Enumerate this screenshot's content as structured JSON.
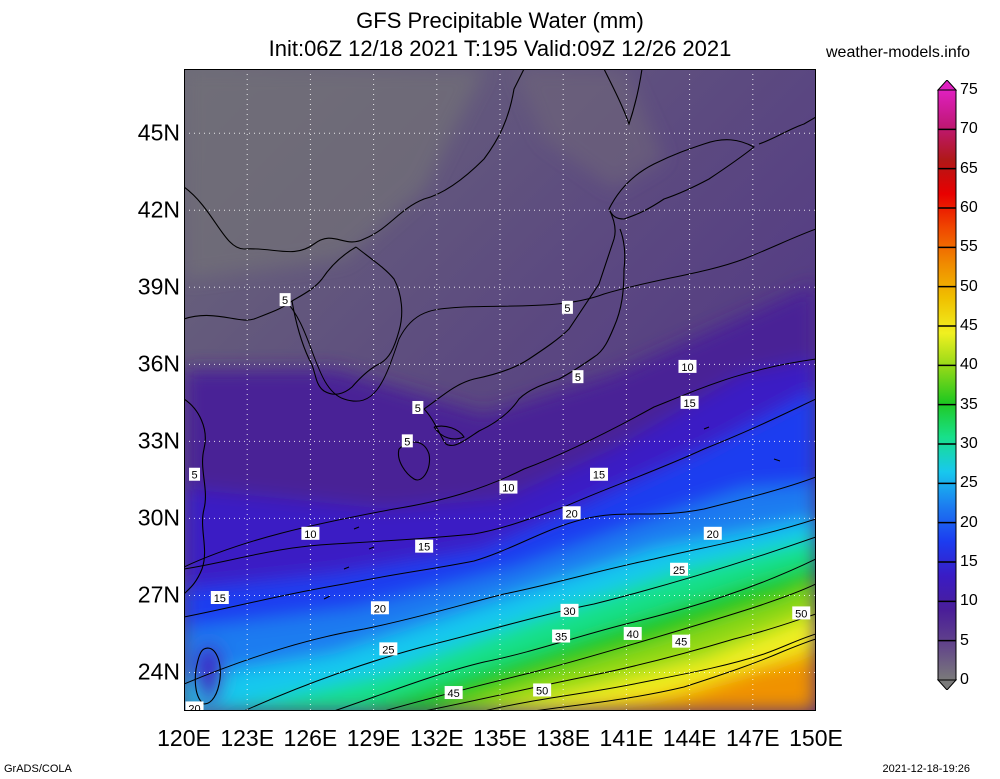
{
  "header": {
    "title": "GFS Precipitable Water (mm)",
    "subtitle": "Init:06Z 12/18 2021 T:195 Valid:09Z 12/26 2021",
    "site": "weather-models.info"
  },
  "footer": {
    "left": "GrADS/COLA",
    "right": "2021-12-18-19:26"
  },
  "map": {
    "lat_range": [
      22.5,
      47.5
    ],
    "lon_range": [
      120,
      150
    ],
    "lat_ticks": [
      "24N",
      "27N",
      "30N",
      "33N",
      "36N",
      "39N",
      "42N",
      "45N"
    ],
    "lat_values": [
      24,
      27,
      30,
      33,
      36,
      39,
      42,
      45
    ],
    "lon_ticks": [
      "120E",
      "123E",
      "126E",
      "129E",
      "132E",
      "135E",
      "138E",
      "141E",
      "144E",
      "147E",
      "150E"
    ],
    "lon_values": [
      120,
      123,
      126,
      129,
      132,
      135,
      138,
      141,
      144,
      147,
      150
    ],
    "contour_labels": [
      {
        "text": "5",
        "lon": 124.8,
        "lat": 38.5
      },
      {
        "text": "5",
        "lon": 138.2,
        "lat": 38.2
      },
      {
        "text": "5",
        "lon": 138.7,
        "lat": 35.5
      },
      {
        "text": "5",
        "lon": 131.1,
        "lat": 34.3
      },
      {
        "text": "5",
        "lon": 130.6,
        "lat": 33.0
      },
      {
        "text": "5",
        "lon": 120.5,
        "lat": 31.7
      },
      {
        "text": "10",
        "lon": 143.9,
        "lat": 35.9
      },
      {
        "text": "15",
        "lon": 144.0,
        "lat": 34.5
      },
      {
        "text": "15",
        "lon": 139.7,
        "lat": 31.7
      },
      {
        "text": "10",
        "lon": 135.4,
        "lat": 31.2
      },
      {
        "text": "20",
        "lon": 138.4,
        "lat": 30.2
      },
      {
        "text": "10",
        "lon": 126.0,
        "lat": 29.4
      },
      {
        "text": "15",
        "lon": 131.4,
        "lat": 28.9
      },
      {
        "text": "20",
        "lon": 145.1,
        "lat": 29.4
      },
      {
        "text": "25",
        "lon": 143.5,
        "lat": 28.0
      },
      {
        "text": "15",
        "lon": 121.7,
        "lat": 26.9
      },
      {
        "text": "20",
        "lon": 129.3,
        "lat": 26.5
      },
      {
        "text": "30",
        "lon": 138.3,
        "lat": 26.4
      },
      {
        "text": "35",
        "lon": 137.9,
        "lat": 25.4
      },
      {
        "text": "40",
        "lon": 141.3,
        "lat": 25.5
      },
      {
        "text": "45",
        "lon": 143.6,
        "lat": 25.2
      },
      {
        "text": "50",
        "lon": 149.3,
        "lat": 26.3
      },
      {
        "text": "25",
        "lon": 129.7,
        "lat": 24.9
      },
      {
        "text": "45",
        "lon": 132.8,
        "lat": 23.2
      },
      {
        "text": "50",
        "lon": 137.0,
        "lat": 23.3
      },
      {
        "text": "20",
        "lon": 120.5,
        "lat": 22.6
      }
    ]
  },
  "colorbar": {
    "labels": [
      "0",
      "5",
      "10",
      "15",
      "20",
      "25",
      "30",
      "35",
      "40",
      "45",
      "50",
      "55",
      "60",
      "65",
      "70",
      "75"
    ],
    "colors": [
      "#7a7a7a",
      "#62458a",
      "#4a1e98",
      "#3a1cc4",
      "#1c3cf0",
      "#1c7cf0",
      "#18c8ee",
      "#18e08a",
      "#20c820",
      "#90d818",
      "#f0f020",
      "#f0c000",
      "#f08a00",
      "#f04800",
      "#e80000",
      "#b01818",
      "#c01878",
      "#e020c0"
    ]
  }
}
